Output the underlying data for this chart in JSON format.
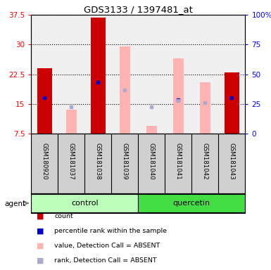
{
  "title": "GDS3133 / 1397481_at",
  "samples": [
    "GSM180920",
    "GSM181037",
    "GSM181038",
    "GSM181039",
    "GSM181040",
    "GSM181041",
    "GSM181042",
    "GSM181043"
  ],
  "ylim_left": [
    7.5,
    37.5
  ],
  "ylim_right": [
    0,
    100
  ],
  "yticks_left": [
    7.5,
    15.0,
    22.5,
    30.0,
    37.5
  ],
  "ytick_labels_left": [
    "7.5",
    "15",
    "22.5",
    "30",
    "37.5"
  ],
  "yticks_right": [
    0,
    25,
    50,
    75,
    100
  ],
  "ytick_labels_right": [
    "0",
    "25",
    "50",
    "75",
    "100%"
  ],
  "red_bars": [
    24.0,
    null,
    36.8,
    null,
    null,
    null,
    null,
    23.0
  ],
  "blue_markers": [
    16.5,
    null,
    20.5,
    null,
    null,
    16.0,
    null,
    16.5
  ],
  "pink_bars": [
    null,
    13.5,
    null,
    29.5,
    9.5,
    26.5,
    20.5,
    null
  ],
  "lavender_markers": [
    null,
    14.2,
    null,
    18.5,
    14.3,
    15.8,
    15.3,
    null
  ],
  "red_color": "#cc0000",
  "blue_color": "#0000cc",
  "pink_color": "#ffb3b3",
  "lavender_color": "#aaaacc",
  "bar_width": 0.55,
  "plot_bg": "#f0f0f0",
  "label_bg": "#d0d0d0",
  "ctrl_color": "#bbffbb",
  "quer_color": "#44dd44",
  "legend_items": [
    {
      "color": "#cc0000",
      "label": "count"
    },
    {
      "color": "#0000cc",
      "label": "percentile rank within the sample"
    },
    {
      "color": "#ffb3b3",
      "label": "value, Detection Call = ABSENT"
    },
    {
      "color": "#aaaacc",
      "label": "rank, Detection Call = ABSENT"
    }
  ]
}
